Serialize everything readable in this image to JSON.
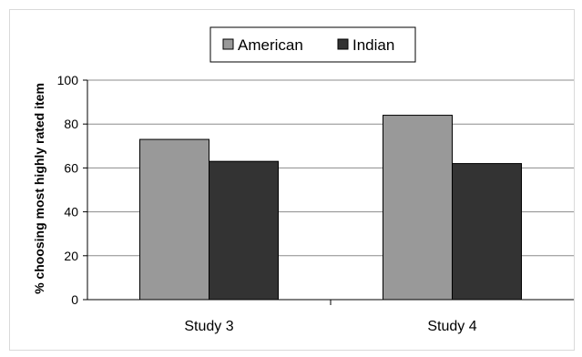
{
  "chart_data": {
    "type": "bar",
    "categories": [
      "Study 3",
      "Study 4"
    ],
    "series": [
      {
        "name": "American",
        "values": [
          73,
          84
        ],
        "color": "#999999"
      },
      {
        "name": "Indian",
        "values": [
          63,
          62
        ],
        "color": "#333333"
      }
    ],
    "ylabel": "% choosing most highly rated item",
    "xlabel": "",
    "ylim": [
      0,
      100
    ],
    "yticks": [
      0,
      20,
      40,
      60,
      80,
      100
    ],
    "grid": true,
    "legend": "top-center"
  }
}
